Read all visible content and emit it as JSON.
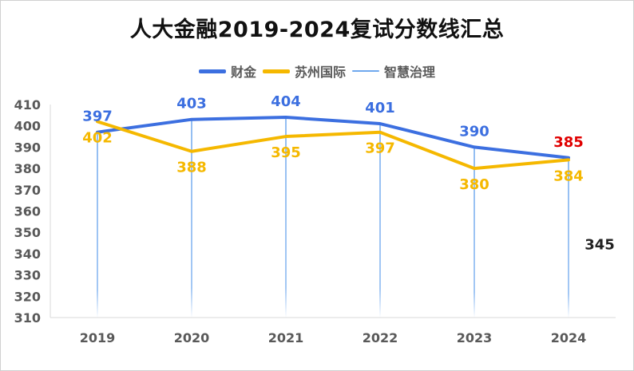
{
  "chart_data": {
    "type": "line",
    "title": "人大金融2019-2024复试分数线汇总",
    "categories": [
      "2019",
      "2020",
      "2021",
      "2022",
      "2023",
      "2024"
    ],
    "ylim": [
      310,
      410
    ],
    "yticks": [
      310,
      320,
      330,
      340,
      350,
      360,
      370,
      380,
      390,
      400,
      410
    ],
    "grid": false,
    "legend_position": "top",
    "series": [
      {
        "name": "财金",
        "color": "#3c6fe0",
        "values": [
          397,
          403,
          404,
          401,
          390,
          385
        ]
      },
      {
        "name": "苏州国际",
        "color": "#f5b800",
        "values": [
          402,
          388,
          395,
          397,
          380,
          384
        ]
      },
      {
        "name": "智慧治理",
        "color": "#6fa8ee",
        "values": [
          null,
          null,
          null,
          null,
          null,
          345
        ]
      }
    ],
    "labels": {
      "caijin": [
        "397",
        "403",
        "404",
        "401",
        "390",
        "385"
      ],
      "suzhou": [
        "402",
        "388",
        "395",
        "397",
        "380",
        "384"
      ],
      "zhihui_2024": "345"
    },
    "label_colors": {
      "caijin": "#3c6fe0",
      "caijin_2024": "#e00000",
      "suzhou": "#f5b800",
      "zhihui": "#222222",
      "axis_text": "#595959"
    }
  }
}
